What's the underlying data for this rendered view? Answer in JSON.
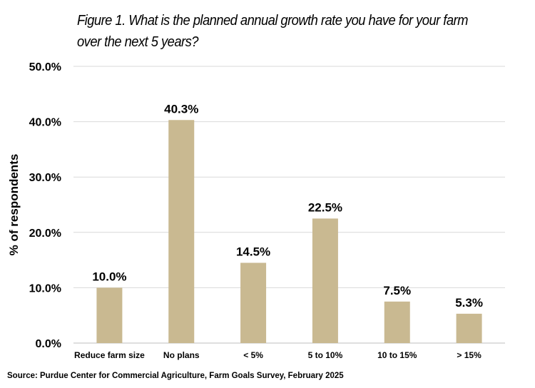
{
  "chart_data": {
    "type": "bar",
    "title": "Figure 1. What is the planned annual growth rate you have for your farm over the next 5 years?",
    "ylabel": "% of respondents",
    "xlabel": "",
    "categories": [
      "Reduce farm size",
      "No plans",
      "< 5%",
      "5 to 10%",
      "10 to 15%",
      "> 15%"
    ],
    "values": [
      10.0,
      40.3,
      14.5,
      22.5,
      7.5,
      5.3
    ],
    "data_labels": [
      "10.0%",
      "40.3%",
      "14.5%",
      "22.5%",
      "7.5%",
      "5.3%"
    ],
    "ylim": [
      0,
      50
    ],
    "yticks": [
      0,
      10,
      20,
      30,
      40,
      50
    ],
    "ytick_labels": [
      "0.0%",
      "10.0%",
      "20.0%",
      "30.0%",
      "40.0%",
      "50.0%"
    ],
    "grid": true,
    "bar_color": "#c9b991",
    "grid_color": "#d9d9d9"
  },
  "source": "Source: Purdue Center for Commercial Agriculture, Farm Goals Survey, February 2025"
}
